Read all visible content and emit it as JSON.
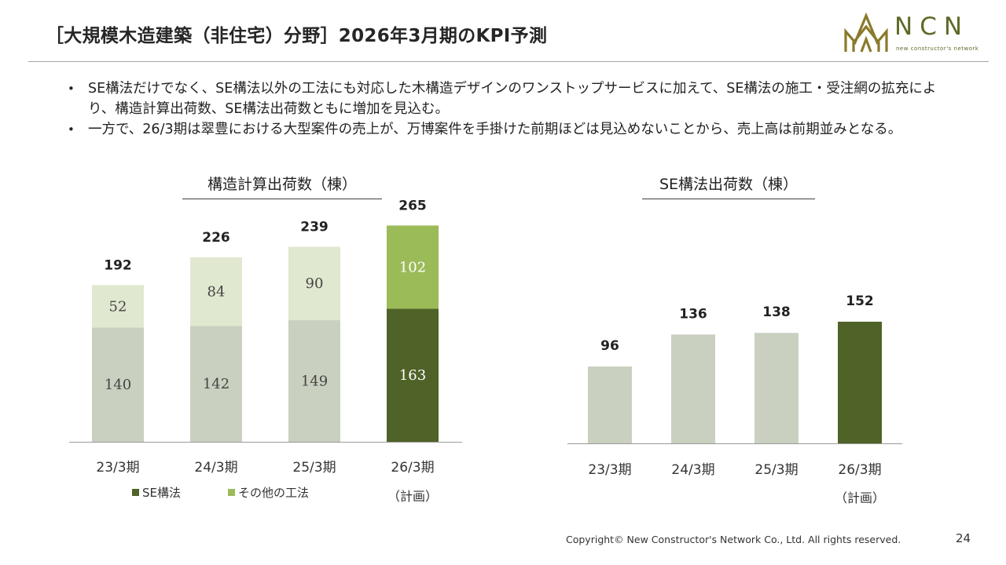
{
  "header": {
    "title": "［大規模木造建築（非住宅）分野］2026年3月期のKPI予測",
    "logo_text": "NCN",
    "logo_sub": "new constructor's network"
  },
  "bullets": [
    "SE構法だけでなく、SE構法以外の工法にも対応した木構造デザインのワンストップサービスに加えて、SE構法の施工・受注網の拡充により、構造計算出荷数、SE構法出荷数ともに増加を見込む。",
    "一方で、26/3期は翠豊における大型案件の売上が、万博案件を手掛けた前期ほどは見込めないことから、売上高は前期並みとなる。"
  ],
  "colors": {
    "se_past": "#c9d0bf",
    "other_past": "#e0e8d0",
    "se_plan": "#4f6228",
    "other_plan": "#9bbb59",
    "axis": "#9a9a9a"
  },
  "chart_data": [
    {
      "type": "bar",
      "stacked": true,
      "title": "構造計算出荷数（棟）",
      "categories": [
        "23/3期",
        "24/3期",
        "25/3期",
        "26/3期"
      ],
      "category_sublabels": [
        "",
        "",
        "",
        "（計画）"
      ],
      "series": [
        {
          "name": "SE構法",
          "values": [
            140,
            142,
            149,
            163
          ]
        },
        {
          "name": "その他の工法",
          "values": [
            52,
            84,
            90,
            102
          ]
        }
      ],
      "totals": [
        192,
        226,
        239,
        265
      ],
      "legend_position": "bottom",
      "grid": false
    },
    {
      "type": "bar",
      "title": "SE構法出荷数（棟）",
      "categories": [
        "23/3期",
        "24/3期",
        "25/3期",
        "26/3期"
      ],
      "category_sublabels": [
        "",
        "",
        "",
        "（計画）"
      ],
      "values": [
        96,
        136,
        138,
        152
      ],
      "grid": false
    }
  ],
  "footer": {
    "copyright": "Copyright© New Constructor's Network Co., Ltd. All rights reserved.",
    "page": "24"
  }
}
